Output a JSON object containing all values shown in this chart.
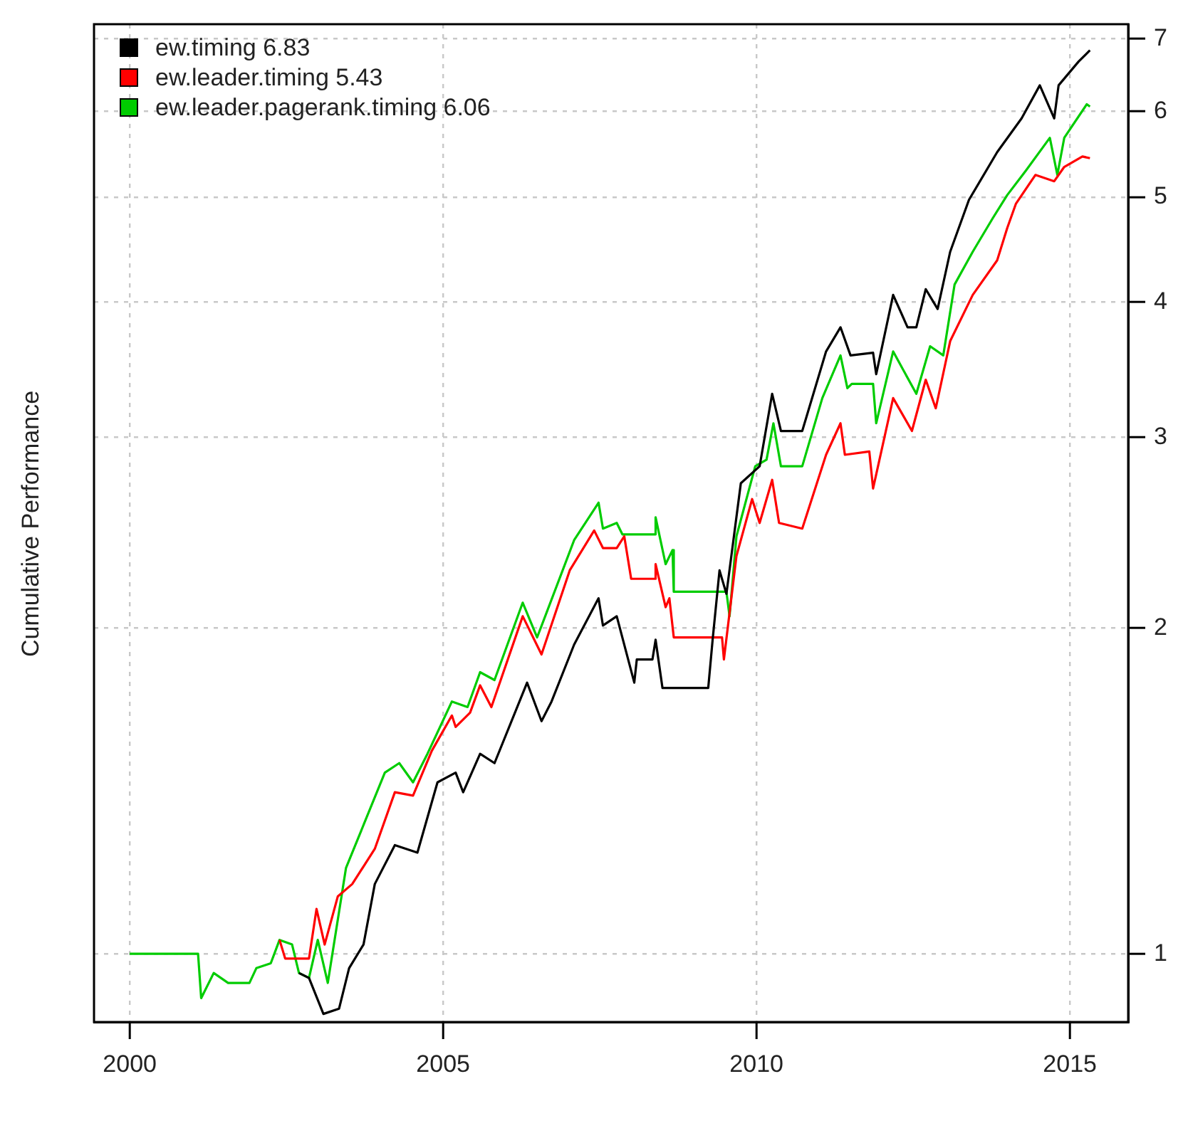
{
  "chart_data": {
    "type": "line",
    "ylabel": "Cumulative Performance",
    "log": "y",
    "grid": true,
    "legend": "top left",
    "xlim": [
      1999.43,
      2015.93
    ],
    "xticks": [
      2000,
      2005,
      2010,
      2015
    ],
    "ylim": [
      0.865,
      7.22
    ],
    "yticks": [
      1,
      2,
      3,
      4,
      5,
      6,
      7
    ],
    "series": [
      {
        "name": "ew.timing 6.83",
        "color": "#000000",
        "x": [
          2002.7,
          2002.86,
          2003.09,
          2003.34,
          2003.5,
          2003.73,
          2003.91,
          2004.23,
          2004.59,
          2004.91,
          2005.2,
          2005.32,
          2005.59,
          2005.82,
          2006.34,
          2006.57,
          2006.73,
          2007.09,
          2007.48,
          2007.55,
          2007.77,
          2008.05,
          2008.09,
          2008.34,
          2008.39,
          2008.5,
          2009.23,
          2009.3,
          2009.41,
          2009.52,
          2009.75,
          2010.05,
          2010.25,
          2010.39,
          2010.73,
          2011.11,
          2011.34,
          2011.5,
          2011.86,
          2011.91,
          2012.18,
          2012.41,
          2012.55,
          2012.7,
          2012.89,
          2013.09,
          2013.39,
          2013.84,
          2014.23,
          2014.52,
          2014.75,
          2014.82,
          2015.14,
          2015.32
        ],
        "values": [
          0.96,
          0.95,
          0.88,
          0.89,
          0.97,
          1.02,
          1.16,
          1.26,
          1.24,
          1.44,
          1.47,
          1.41,
          1.53,
          1.5,
          1.78,
          1.64,
          1.71,
          1.93,
          2.13,
          2.01,
          2.05,
          1.78,
          1.87,
          1.87,
          1.95,
          1.76,
          1.76,
          1.95,
          2.26,
          2.15,
          2.72,
          2.82,
          3.29,
          3.04,
          3.04,
          3.6,
          3.79,
          3.57,
          3.59,
          3.43,
          4.06,
          3.79,
          3.79,
          4.11,
          3.94,
          4.45,
          4.97,
          5.5,
          5.91,
          6.34,
          5.91,
          6.34,
          6.67,
          6.83
        ]
      },
      {
        "name": "ew.leader.timing 5.43",
        "color": "#ff0000",
        "x": [
          2002.39,
          2002.48,
          2002.86,
          2002.98,
          2003.11,
          2003.32,
          2003.55,
          2003.91,
          2004.23,
          2004.52,
          2004.82,
          2005.14,
          2005.2,
          2005.43,
          2005.59,
          2005.77,
          2006.27,
          2006.57,
          2007.02,
          2007.41,
          2007.55,
          2007.77,
          2007.89,
          2008.0,
          2008.39,
          2008.39,
          2008.55,
          2008.61,
          2008.68,
          2009.45,
          2009.48,
          2009.68,
          2009.93,
          2010.05,
          2010.25,
          2010.36,
          2010.73,
          2011.11,
          2011.34,
          2011.41,
          2011.8,
          2011.86,
          2012.18,
          2012.48,
          2012.7,
          2012.86,
          2013.09,
          2013.45,
          2013.84,
          2014.0,
          2014.14,
          2014.45,
          2014.75,
          2014.91,
          2015.2,
          2015.32
        ],
        "values": [
          1.03,
          0.99,
          0.99,
          1.1,
          1.02,
          1.13,
          1.16,
          1.25,
          1.41,
          1.4,
          1.54,
          1.66,
          1.62,
          1.67,
          1.77,
          1.69,
          2.05,
          1.89,
          2.26,
          2.46,
          2.37,
          2.37,
          2.43,
          2.22,
          2.22,
          2.29,
          2.09,
          2.13,
          1.96,
          1.96,
          1.87,
          2.33,
          2.63,
          2.5,
          2.74,
          2.5,
          2.47,
          2.89,
          3.09,
          2.89,
          2.91,
          2.69,
          3.26,
          3.04,
          3.39,
          3.19,
          3.68,
          4.06,
          4.37,
          4.68,
          4.93,
          5.24,
          5.17,
          5.33,
          5.45,
          5.43
        ]
      },
      {
        "name": "ew.leader.pagerank.timing 6.06",
        "color": "#00cc00",
        "x": [
          2000.0,
          2001.09,
          2001.14,
          2001.34,
          2001.57,
          2001.91,
          2002.02,
          2002.25,
          2002.39,
          2002.59,
          2002.7,
          2002.86,
          2003.0,
          2003.16,
          2003.45,
          2004.07,
          2004.3,
          2004.52,
          2004.75,
          2005.14,
          2005.39,
          2005.59,
          2005.82,
          2006.27,
          2006.5,
          2007.09,
          2007.48,
          2007.55,
          2007.77,
          2007.86,
          2008.39,
          2008.39,
          2008.55,
          2008.66,
          2008.68,
          2009.52,
          2009.57,
          2009.68,
          2009.98,
          2010.16,
          2010.27,
          2010.39,
          2010.73,
          2011.05,
          2011.34,
          2011.45,
          2011.52,
          2011.86,
          2011.91,
          2012.18,
          2012.55,
          2012.77,
          2012.98,
          2013.16,
          2013.45,
          2013.77,
          2014.0,
          2014.3,
          2014.68,
          2014.8,
          2014.91,
          2015.27,
          2015.32
        ],
        "values": [
          1.0,
          1.0,
          0.91,
          0.96,
          0.94,
          0.94,
          0.97,
          0.98,
          1.03,
          1.02,
          0.96,
          0.95,
          1.03,
          0.94,
          1.2,
          1.47,
          1.5,
          1.44,
          1.53,
          1.71,
          1.69,
          1.82,
          1.79,
          2.11,
          1.96,
          2.41,
          2.61,
          2.47,
          2.5,
          2.44,
          2.44,
          2.53,
          2.29,
          2.36,
          2.16,
          2.16,
          2.05,
          2.43,
          2.82,
          2.86,
          3.09,
          2.82,
          2.82,
          3.26,
          3.57,
          3.33,
          3.36,
          3.36,
          3.09,
          3.6,
          3.29,
          3.64,
          3.57,
          4.15,
          4.45,
          4.78,
          5.02,
          5.29,
          5.67,
          5.24,
          5.67,
          6.09,
          6.06
        ]
      }
    ]
  }
}
